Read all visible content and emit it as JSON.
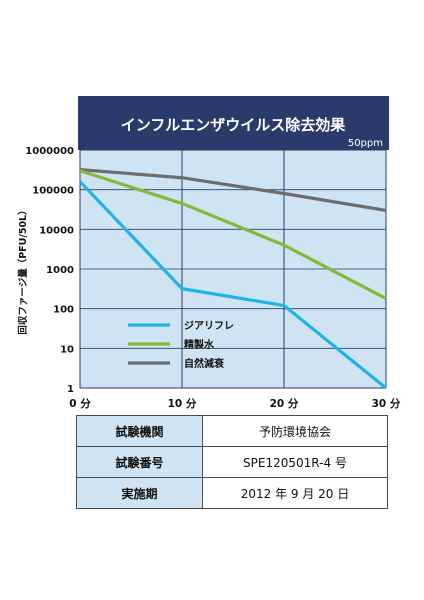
{
  "chart_data": {
    "type": "line",
    "title": "インフルエンザウイルス除去効果",
    "subtitle": "50ppm",
    "ylabel": "回収ファージ量（PFU/50L）",
    "xlabel": "",
    "y_scale": "log",
    "ylim": [
      1,
      1000000
    ],
    "xlim": [
      0,
      30
    ],
    "grid": true,
    "legend_position": "lower-left",
    "y_tick_labels": [
      "1000000",
      "100000",
      "10000",
      "1000",
      "100",
      "10",
      "1"
    ],
    "x_tick_labels": [
      "0 分",
      "10 分",
      "20 分",
      "30 分"
    ],
    "x": [
      0,
      10,
      20,
      30
    ],
    "series": [
      {
        "name": "ジアリフレ",
        "color": "#1eb4e6",
        "values": [
          160000,
          320,
          120,
          1
        ]
      },
      {
        "name": "精製水",
        "color": "#86b83a",
        "values": [
          300000,
          45000,
          4000,
          180
        ]
      },
      {
        "name": "自然減衰",
        "color": "#6d6d6d",
        "values": [
          320000,
          200000,
          80000,
          30000
        ]
      }
    ]
  },
  "info_table": {
    "rows": [
      {
        "label": "試験機関",
        "value": "予防環境協会"
      },
      {
        "label": "試験番号",
        "value": "SPE120501R-4 号"
      },
      {
        "label": "実施期",
        "value": "2012 年 9 月 20 日"
      }
    ]
  },
  "colors": {
    "title_bar": "#2b3a6b",
    "plot_bg": "#cfe3f3",
    "grid": "#2b3a6b"
  }
}
